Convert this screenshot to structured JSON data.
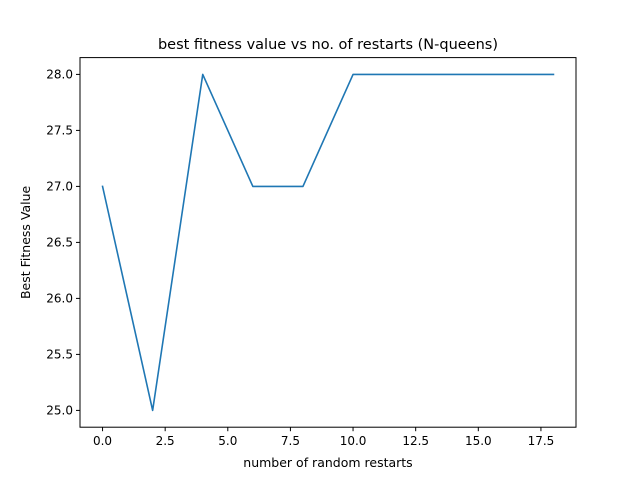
{
  "chart_data": {
    "type": "line",
    "title": "best fitness value vs no. of restarts (N-queens)",
    "xlabel": "number of random restarts",
    "ylabel": "Best Fitness Value",
    "xlim": [
      -0.9,
      18.9
    ],
    "ylim": [
      24.85,
      28.15
    ],
    "xticks": [
      0.0,
      2.5,
      5.0,
      7.5,
      10.0,
      12.5,
      15.0,
      17.5
    ],
    "xtick_labels": [
      "0.0",
      "2.5",
      "5.0",
      "7.5",
      "10.0",
      "12.5",
      "15.0",
      "17.5"
    ],
    "yticks": [
      25.0,
      25.5,
      26.0,
      26.5,
      27.0,
      27.5,
      28.0
    ],
    "ytick_labels": [
      "25.0",
      "25.5",
      "26.0",
      "26.5",
      "27.0",
      "27.5",
      "28.0"
    ],
    "grid": false,
    "series": [
      {
        "color": "#1f77b4",
        "x": [
          0,
          2,
          4,
          6,
          8,
          10,
          12,
          14,
          16,
          18
        ],
        "y": [
          27,
          25,
          28,
          27,
          27,
          28,
          28,
          28,
          28,
          28
        ]
      }
    ]
  }
}
